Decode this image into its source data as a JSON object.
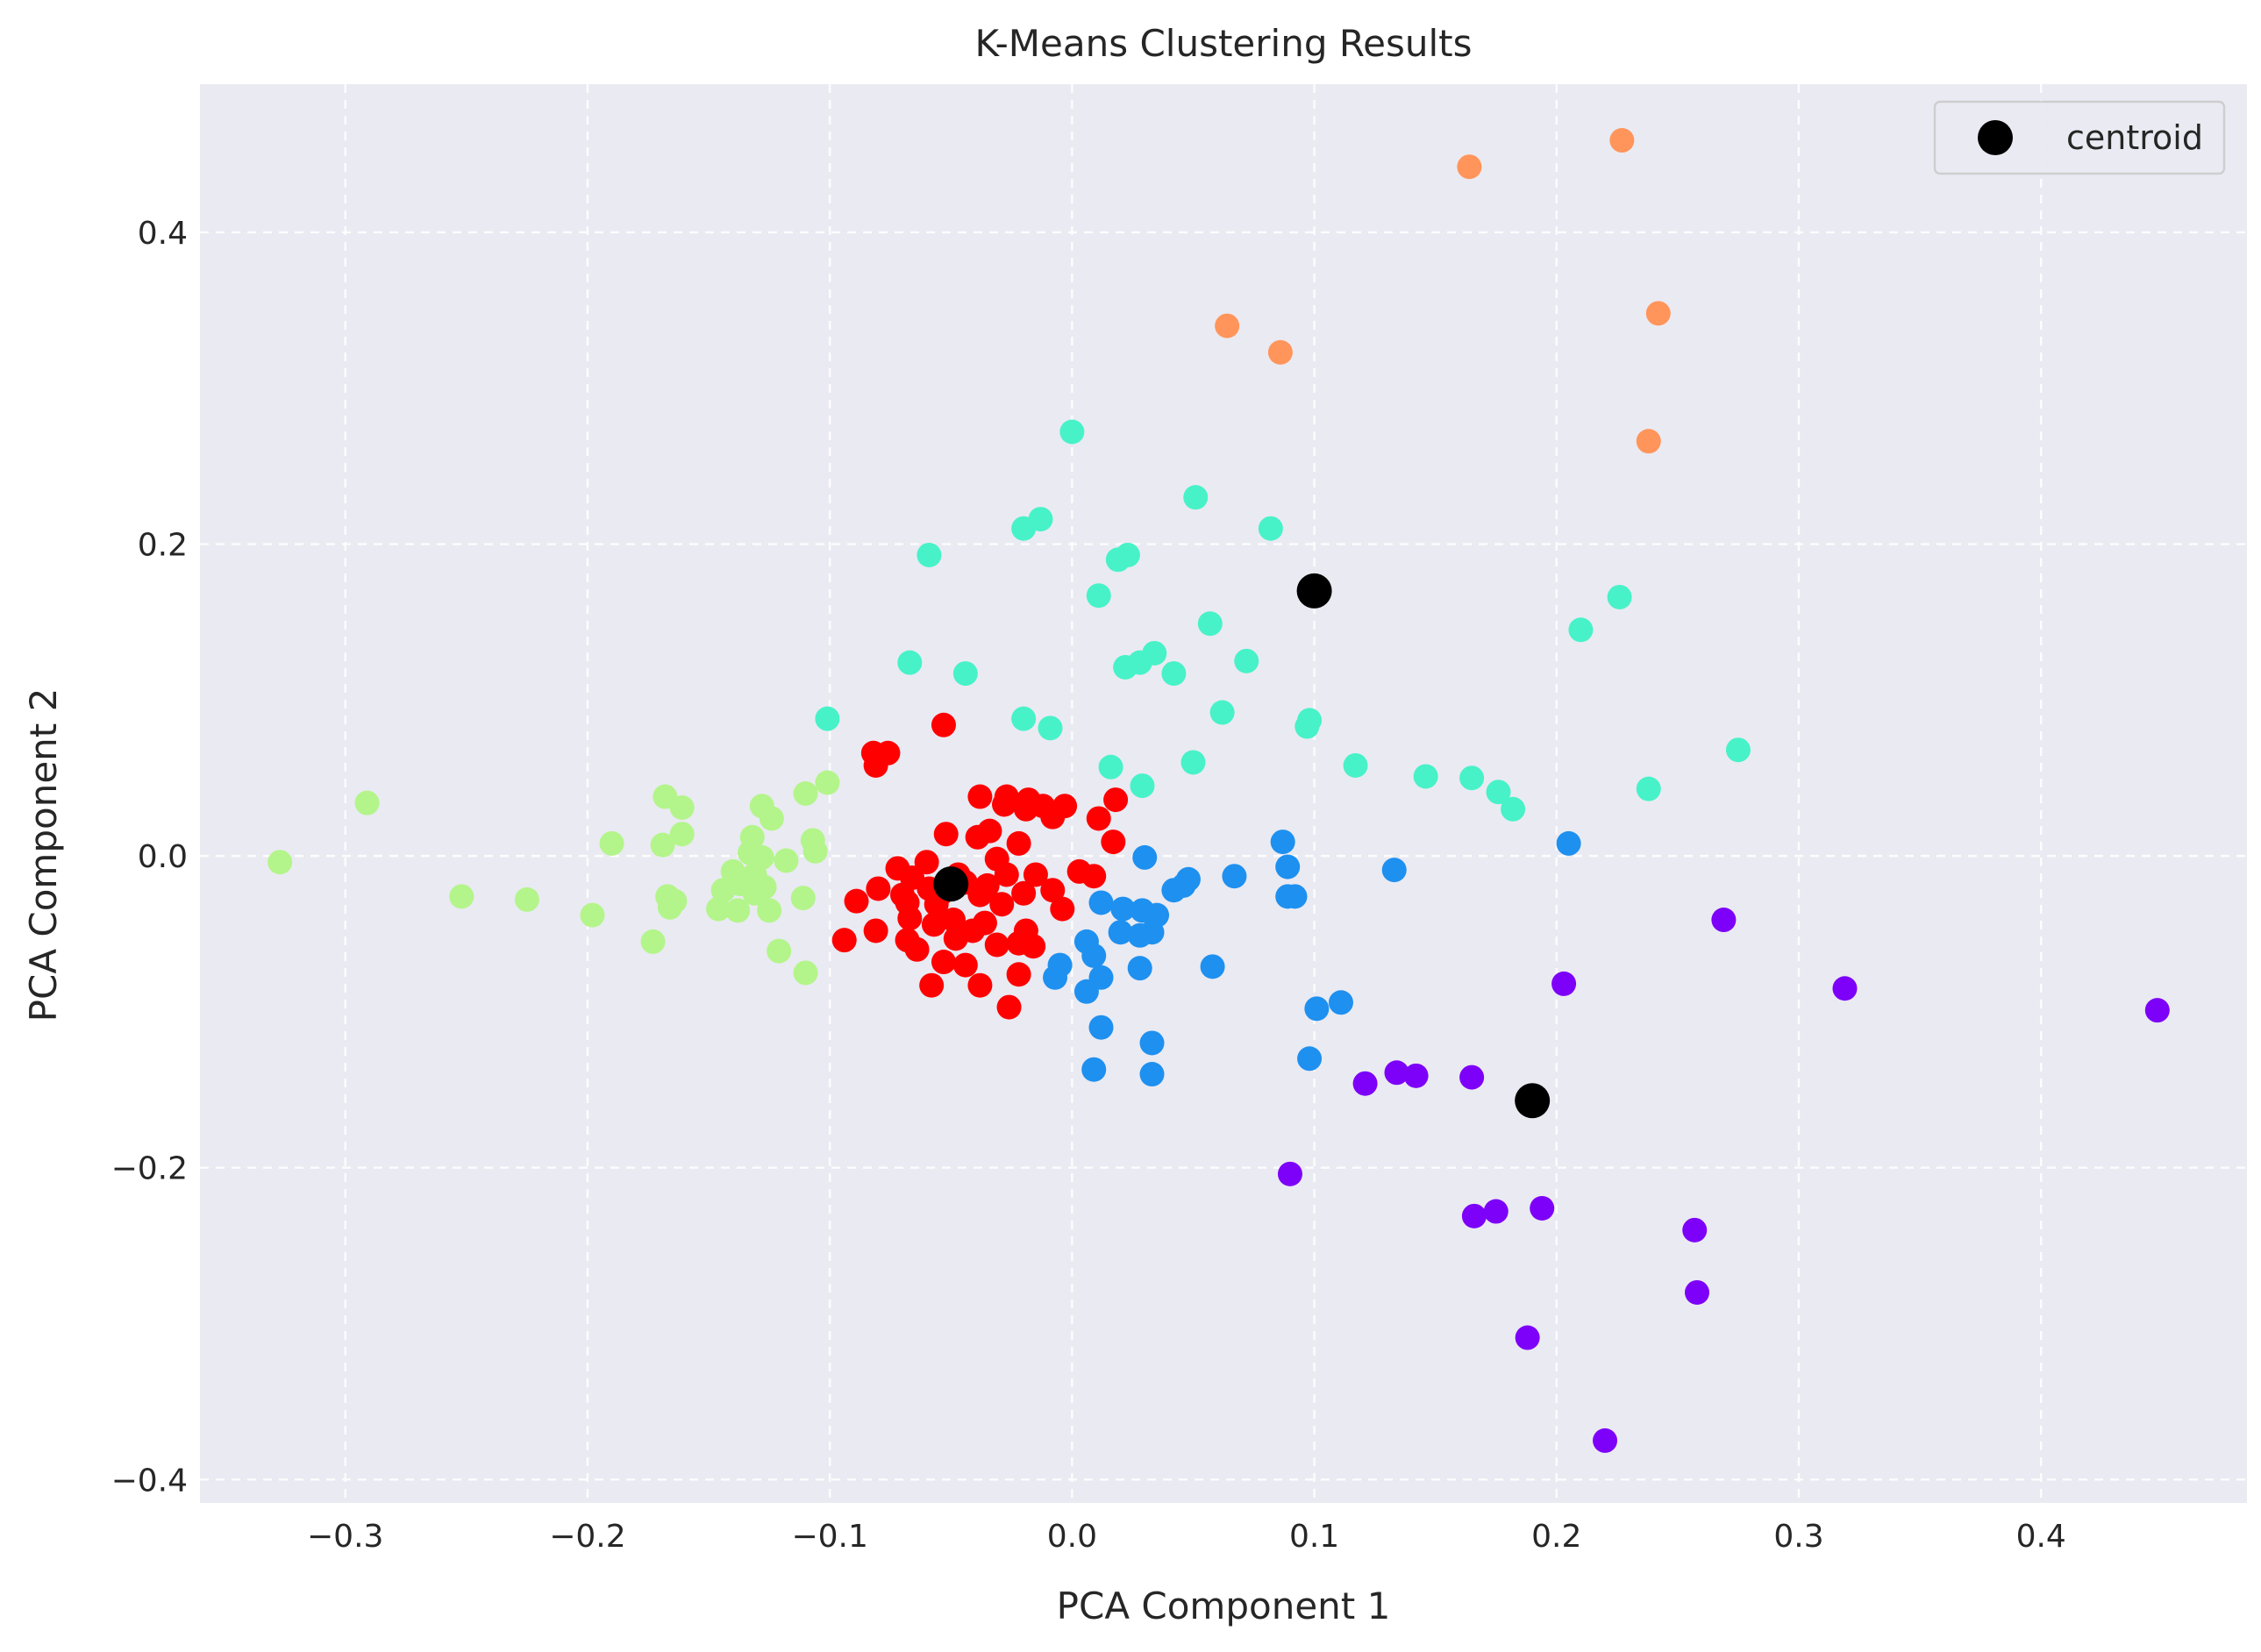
{
  "chart_data": {
    "type": "scatter",
    "title": "K-Means Clustering Results",
    "xlabel": "PCA Component 1",
    "ylabel": "PCA Component 2",
    "xlim": [
      -0.36,
      0.485
    ],
    "ylim": [
      -0.415,
      0.495
    ],
    "xticks": [
      -0.3,
      -0.2,
      -0.1,
      0.0,
      0.1,
      0.2,
      0.3,
      0.4
    ],
    "yticks": [
      -0.4,
      -0.2,
      0.0,
      0.2,
      0.4
    ],
    "xtick_labels": [
      "−0.3",
      "−0.2",
      "−0.1",
      "0.0",
      "0.1",
      "0.2",
      "0.3",
      "0.4"
    ],
    "ytick_labels": [
      "−0.4",
      "−0.2",
      "0.0",
      "0.2",
      "0.4"
    ],
    "grid": true,
    "legend_position": "top-right",
    "colors": {
      "background": "#eaeaf2",
      "grid": "#ffffff",
      "centroid": "#000000"
    },
    "series": [
      {
        "color": "#ff0000",
        "points": [
          [
            -0.053,
            0.084
          ],
          [
            -0.082,
            0.066
          ],
          [
            -0.076,
            0.066
          ],
          [
            -0.081,
            0.058
          ],
          [
            -0.038,
            0.038
          ],
          [
            -0.027,
            0.038
          ],
          [
            -0.018,
            0.036
          ],
          [
            0.018,
            0.036
          ],
          [
            -0.028,
            0.033
          ],
          [
            -0.012,
            0.032
          ],
          [
            -0.003,
            0.032
          ],
          [
            -0.019,
            0.03
          ],
          [
            -0.008,
            0.025
          ],
          [
            0.011,
            0.024
          ],
          [
            -0.034,
            0.016
          ],
          [
            -0.052,
            0.014
          ],
          [
            -0.039,
            0.012
          ],
          [
            0.017,
            0.009
          ],
          [
            -0.022,
            0.008
          ],
          [
            -0.031,
            -0.002
          ],
          [
            -0.06,
            -0.004
          ],
          [
            -0.072,
            -0.008
          ],
          [
            -0.047,
            -0.012
          ],
          [
            -0.027,
            -0.012
          ],
          [
            -0.015,
            -0.012
          ],
          [
            0.003,
            -0.01
          ],
          [
            0.009,
            -0.013
          ],
          [
            -0.066,
            -0.014
          ],
          [
            -0.044,
            -0.017
          ],
          [
            -0.035,
            -0.019
          ],
          [
            -0.08,
            -0.021
          ],
          [
            -0.059,
            -0.021
          ],
          [
            -0.008,
            -0.022
          ],
          [
            -0.07,
            -0.025
          ],
          [
            -0.054,
            -0.024
          ],
          [
            -0.038,
            -0.025
          ],
          [
            -0.02,
            -0.024
          ],
          [
            -0.089,
            -0.029
          ],
          [
            -0.068,
            -0.03
          ],
          [
            -0.056,
            -0.031
          ],
          [
            -0.029,
            -0.031
          ],
          [
            -0.067,
            -0.04
          ],
          [
            -0.049,
            -0.041
          ],
          [
            -0.036,
            -0.043
          ],
          [
            -0.004,
            -0.034
          ],
          [
            -0.057,
            -0.044
          ],
          [
            -0.041,
            -0.048
          ],
          [
            -0.019,
            -0.048
          ],
          [
            -0.081,
            -0.048
          ],
          [
            -0.068,
            -0.054
          ],
          [
            -0.048,
            -0.053
          ],
          [
            -0.094,
            -0.054
          ],
          [
            -0.064,
            -0.06
          ],
          [
            -0.031,
            -0.057
          ],
          [
            -0.022,
            -0.056
          ],
          [
            -0.016,
            -0.058
          ],
          [
            -0.053,
            -0.068
          ],
          [
            -0.044,
            -0.07
          ],
          [
            -0.022,
            -0.076
          ],
          [
            -0.058,
            -0.083
          ],
          [
            -0.038,
            -0.083
          ],
          [
            -0.026,
            -0.097
          ]
        ]
      },
      {
        "color": "#48f2c8",
        "points": [
          [
            0.0,
            0.272
          ],
          [
            0.051,
            0.23
          ],
          [
            -0.013,
            0.216
          ],
          [
            -0.02,
            0.21
          ],
          [
            0.082,
            0.21
          ],
          [
            -0.059,
            0.193
          ],
          [
            0.023,
            0.193
          ],
          [
            0.019,
            0.19
          ],
          [
            0.011,
            0.167
          ],
          [
            0.226,
            0.166
          ],
          [
            0.057,
            0.149
          ],
          [
            0.21,
            0.145
          ],
          [
            0.034,
            0.13
          ],
          [
            -0.067,
            0.124
          ],
          [
            0.072,
            0.125
          ],
          [
            0.028,
            0.124
          ],
          [
            0.022,
            0.121
          ],
          [
            -0.044,
            0.117
          ],
          [
            0.042,
            0.117
          ],
          [
            -0.101,
            0.088
          ],
          [
            -0.02,
            0.088
          ],
          [
            0.062,
            0.092
          ],
          [
            0.098,
            0.087
          ],
          [
            0.097,
            0.083
          ],
          [
            -0.009,
            0.082
          ],
          [
            0.275,
            0.068
          ],
          [
            0.016,
            0.057
          ],
          [
            0.05,
            0.06
          ],
          [
            0.117,
            0.058
          ],
          [
            0.146,
            0.051
          ],
          [
            0.165,
            0.05
          ],
          [
            0.176,
            0.041
          ],
          [
            0.182,
            0.03
          ],
          [
            0.029,
            0.045
          ],
          [
            0.238,
            0.043
          ]
        ]
      },
      {
        "color": "#ff955a",
        "points": [
          [
            0.227,
            0.459
          ],
          [
            0.164,
            0.442
          ],
          [
            0.242,
            0.348
          ],
          [
            0.064,
            0.34
          ],
          [
            0.086,
            0.323
          ],
          [
            0.238,
            0.266
          ]
        ]
      },
      {
        "color": "#1e90f0",
        "points": [
          [
            0.087,
            0.009
          ],
          [
            0.205,
            0.008
          ],
          [
            0.03,
            -0.001
          ],
          [
            0.089,
            -0.007
          ],
          [
            0.133,
            -0.009
          ],
          [
            0.067,
            -0.013
          ],
          [
            0.048,
            -0.015
          ],
          [
            0.046,
            -0.019
          ],
          [
            0.042,
            -0.022
          ],
          [
            0.089,
            -0.026
          ],
          [
            0.092,
            -0.026
          ],
          [
            0.012,
            -0.03
          ],
          [
            0.021,
            -0.034
          ],
          [
            0.029,
            -0.035
          ],
          [
            0.035,
            -0.038
          ],
          [
            0.02,
            -0.049
          ],
          [
            0.033,
            -0.049
          ],
          [
            0.028,
            -0.051
          ],
          [
            0.006,
            -0.055
          ],
          [
            0.009,
            -0.064
          ],
          [
            -0.005,
            -0.07
          ],
          [
            0.028,
            -0.072
          ],
          [
            0.058,
            -0.071
          ],
          [
            0.012,
            -0.078
          ],
          [
            -0.007,
            -0.078
          ],
          [
            0.006,
            -0.087
          ],
          [
            0.101,
            -0.098
          ],
          [
            0.111,
            -0.094
          ],
          [
            0.012,
            -0.11
          ],
          [
            0.033,
            -0.12
          ],
          [
            0.098,
            -0.13
          ],
          [
            0.009,
            -0.137
          ],
          [
            0.033,
            -0.14
          ]
        ]
      },
      {
        "color": "#b3f58a",
        "points": [
          [
            -0.101,
            0.047
          ],
          [
            -0.11,
            0.04
          ],
          [
            -0.168,
            0.038
          ],
          [
            -0.161,
            0.031
          ],
          [
            -0.128,
            0.032
          ],
          [
            -0.291,
            0.034
          ],
          [
            -0.124,
            0.024
          ],
          [
            -0.161,
            0.014
          ],
          [
            -0.132,
            0.012
          ],
          [
            -0.107,
            0.01
          ],
          [
            -0.19,
            0.008
          ],
          [
            -0.169,
            0.007
          ],
          [
            -0.133,
            0.002
          ],
          [
            -0.128,
            -0.001
          ],
          [
            -0.106,
            0.003
          ],
          [
            -0.327,
            -0.004
          ],
          [
            -0.118,
            -0.003
          ],
          [
            -0.14,
            -0.01
          ],
          [
            -0.131,
            -0.012
          ],
          [
            -0.137,
            -0.018
          ],
          [
            -0.127,
            -0.02
          ],
          [
            -0.144,
            -0.022
          ],
          [
            -0.131,
            -0.024
          ],
          [
            -0.252,
            -0.026
          ],
          [
            -0.225,
            -0.028
          ],
          [
            -0.167,
            -0.026
          ],
          [
            -0.111,
            -0.027
          ],
          [
            -0.164,
            -0.029
          ],
          [
            -0.146,
            -0.034
          ],
          [
            -0.138,
            -0.035
          ],
          [
            -0.125,
            -0.035
          ],
          [
            -0.198,
            -0.038
          ],
          [
            -0.166,
            -0.033
          ],
          [
            -0.173,
            -0.055
          ],
          [
            -0.121,
            -0.061
          ],
          [
            -0.11,
            -0.075
          ]
        ]
      },
      {
        "color": "#7d00f8",
        "points": [
          [
            0.269,
            -0.041
          ],
          [
            0.203,
            -0.082
          ],
          [
            0.319,
            -0.085
          ],
          [
            0.448,
            -0.099
          ],
          [
            0.134,
            -0.139
          ],
          [
            0.142,
            -0.141
          ],
          [
            0.165,
            -0.142
          ],
          [
            0.121,
            -0.146
          ],
          [
            0.09,
            -0.204
          ],
          [
            0.194,
            -0.226
          ],
          [
            0.175,
            -0.228
          ],
          [
            0.166,
            -0.231
          ],
          [
            0.257,
            -0.24
          ],
          [
            0.258,
            -0.28
          ],
          [
            0.188,
            -0.309
          ],
          [
            0.22,
            -0.375
          ]
        ]
      }
    ],
    "centroids": {
      "name": "centroid",
      "color": "#000000",
      "points": [
        [
          0.1,
          0.17
        ],
        [
          -0.05,
          -0.018
        ],
        [
          0.19,
          -0.157
        ]
      ]
    }
  }
}
